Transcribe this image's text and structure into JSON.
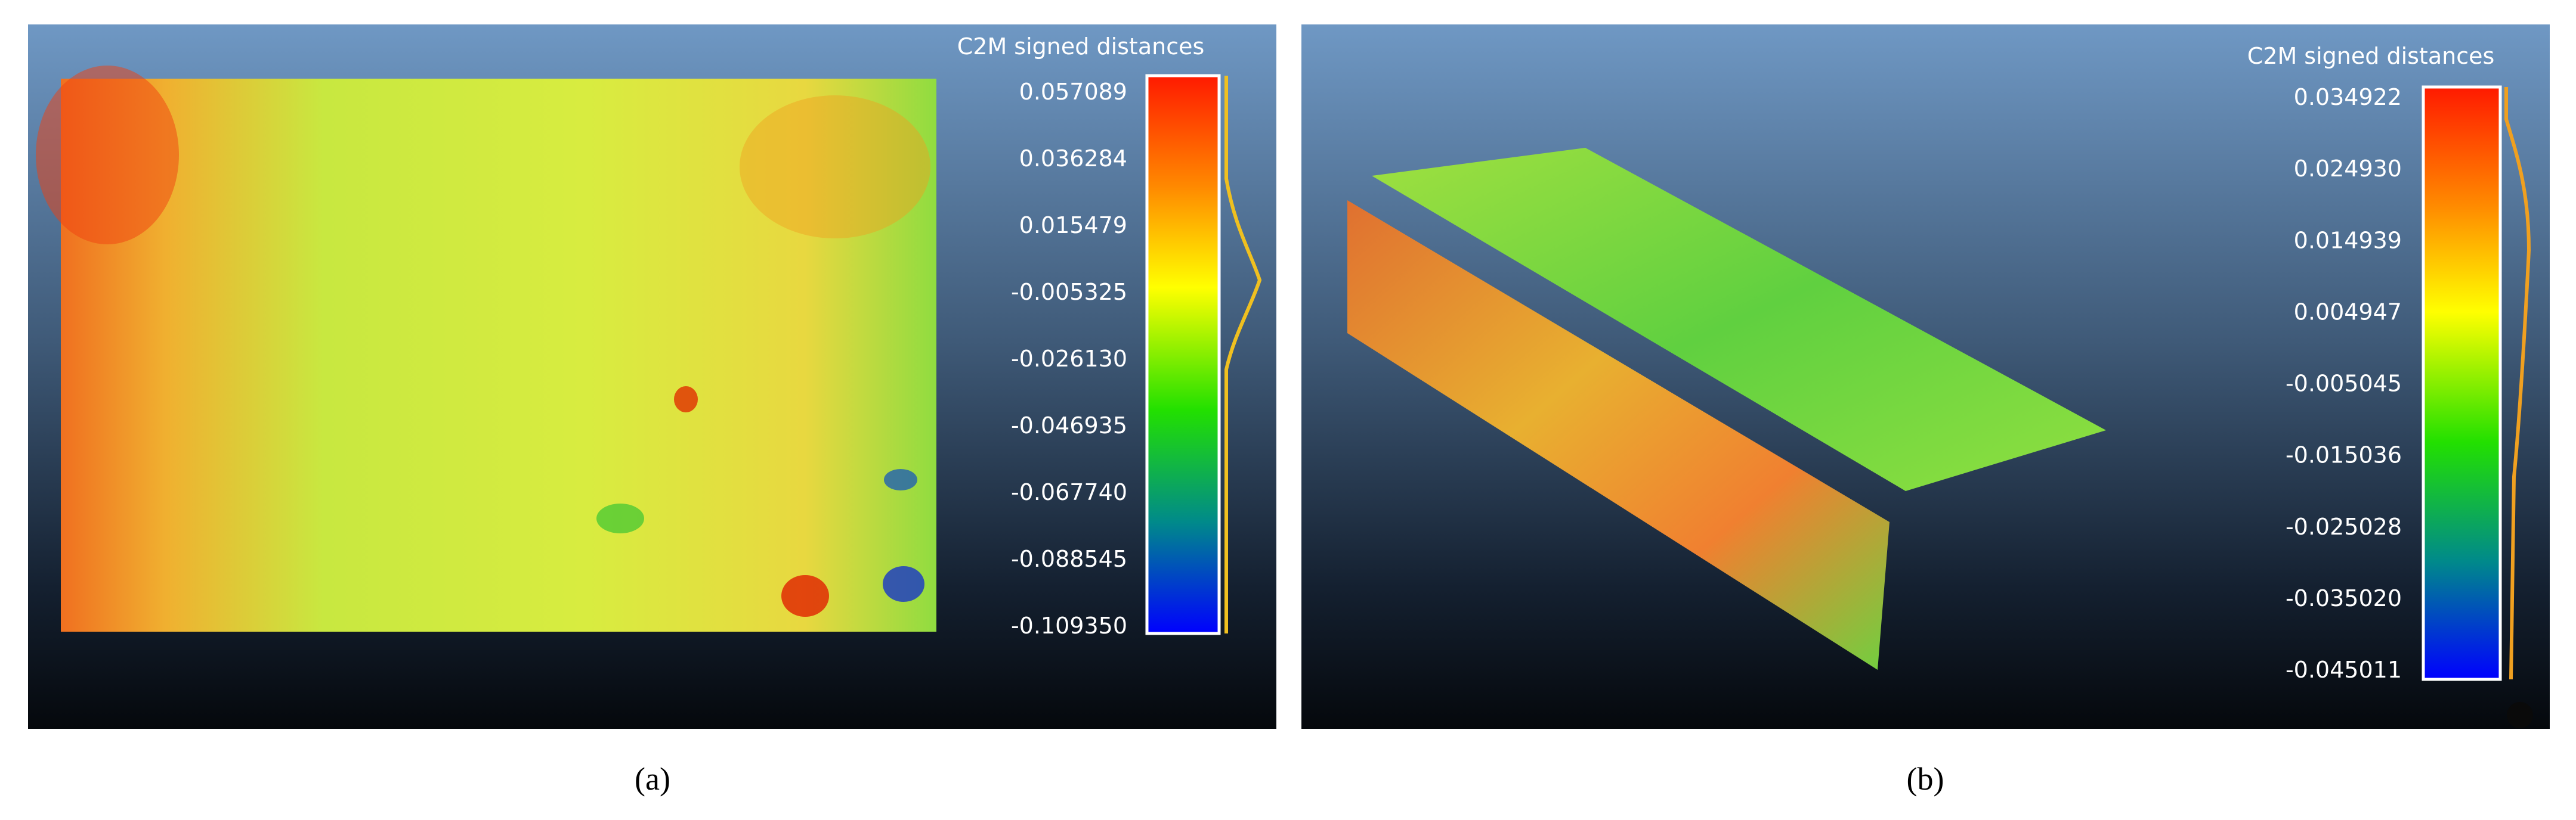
{
  "panels": [
    {
      "scale_title": "C2M signed distances",
      "scale_labels": [
        "0.057089",
        "0.036284",
        "0.015479",
        "-0.005325",
        "-0.026130",
        "-0.046935",
        "-0.067740",
        "-0.088545",
        "-0.109350"
      ],
      "caption": "(a)"
    },
    {
      "scale_title": "C2M signed distances",
      "scale_labels": [
        "0.034922",
        "0.024930",
        "0.014939",
        "0.004947",
        "-0.005045",
        "-0.015036",
        "-0.025028",
        "-0.035020",
        "-0.045011"
      ],
      "caption": "(b)"
    }
  ]
}
